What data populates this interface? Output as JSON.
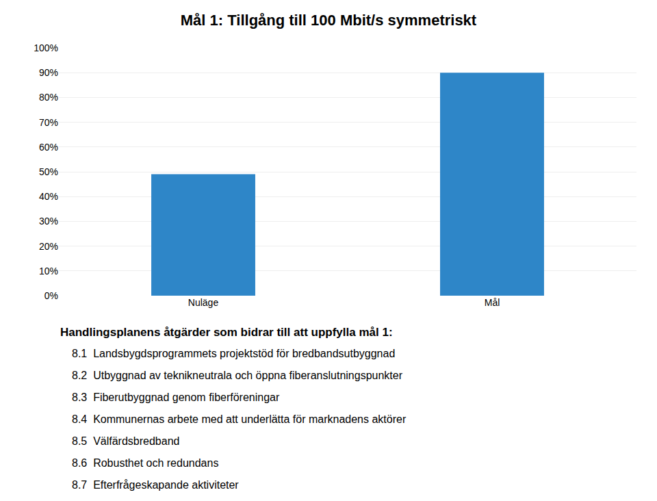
{
  "chart_data": {
    "type": "bar",
    "title": "Mål 1: Tillgång till 100 Mbit/s symmetriskt",
    "categories": [
      "Nuläge",
      "Mål"
    ],
    "values": [
      0.49,
      0.9
    ],
    "color": "#2E86C8",
    "ylim": [
      0,
      1.0
    ],
    "yticks": [
      {
        "value": 0.0,
        "label": "0%"
      },
      {
        "value": 0.1,
        "label": "10%"
      },
      {
        "value": 0.2,
        "label": "20%"
      },
      {
        "value": 0.3,
        "label": "30%"
      },
      {
        "value": 0.4,
        "label": "40%"
      },
      {
        "value": 0.5,
        "label": "50%"
      },
      {
        "value": 0.6,
        "label": "60%"
      },
      {
        "value": 0.7,
        "label": "70%"
      },
      {
        "value": 0.8,
        "label": "80%"
      },
      {
        "value": 0.9,
        "label": "90%"
      },
      {
        "value": 1.0,
        "label": "100%"
      }
    ],
    "grid": true,
    "annotations": [
      "Handlingsplanens åtgärder som bidrar till att uppfylla mål 1:",
      "8.1  Landsbygdsprogrammets projektstöd för bredbandsutbyggnad",
      "8.2  Utbyggnad av teknikneutrala och öppna fiberanslutningspunkter",
      "8.3  Fiberutbyggnad genom fiberföreningar",
      "8.4  Kommunernas arbete med att underlätta för marknadens aktörer",
      "8.5  Välfärdsbredband",
      "8.6  Robusthet och redundans",
      "8.7  Efterfrågeskapande aktiviteter"
    ]
  }
}
